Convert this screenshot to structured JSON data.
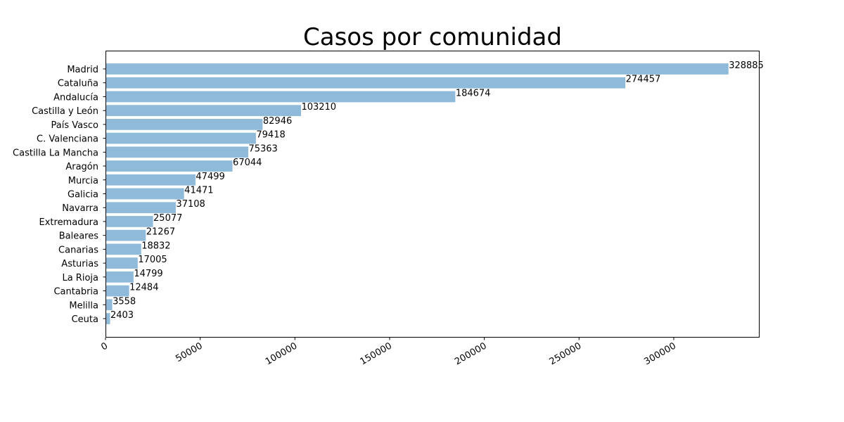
{
  "chart_data": {
    "type": "bar",
    "orientation": "horizontal",
    "title": "Casos por comunidad",
    "xlabel": "",
    "ylabel": "",
    "categories": [
      "Madrid",
      "Cataluña",
      "Andalucía",
      "Castilla y León",
      "País Vasco",
      "C. Valenciana",
      "Castilla La Mancha",
      "Aragón",
      "Murcia",
      "Galicia",
      "Navarra",
      "Extremadura",
      "Baleares",
      "Canarias",
      "Asturias",
      "La Rioja",
      "Cantabria",
      "Melilla",
      "Ceuta"
    ],
    "values": [
      328885,
      274457,
      184674,
      103210,
      82946,
      79418,
      75363,
      67044,
      47499,
      41471,
      37108,
      25077,
      21267,
      18832,
      17005,
      14799,
      12484,
      3558,
      2403
    ],
    "data_labels": [
      "328885",
      "274457",
      "184674",
      "103210",
      "82946",
      "79418",
      "75363",
      "67044",
      "47499",
      "41471",
      "37108",
      "25077",
      "21267",
      "18832",
      "17005",
      "14799",
      "12484",
      "3558",
      "2403"
    ],
    "xticks": [
      0,
      50000,
      100000,
      150000,
      200000,
      250000,
      300000
    ],
    "xtick_labels": [
      "0",
      "50000",
      "100000",
      "150000",
      "200000",
      "250000",
      "300000"
    ],
    "xlim": [
      0,
      345329
    ],
    "bar_color": "#8fbada",
    "grid": false,
    "legend": false
  }
}
